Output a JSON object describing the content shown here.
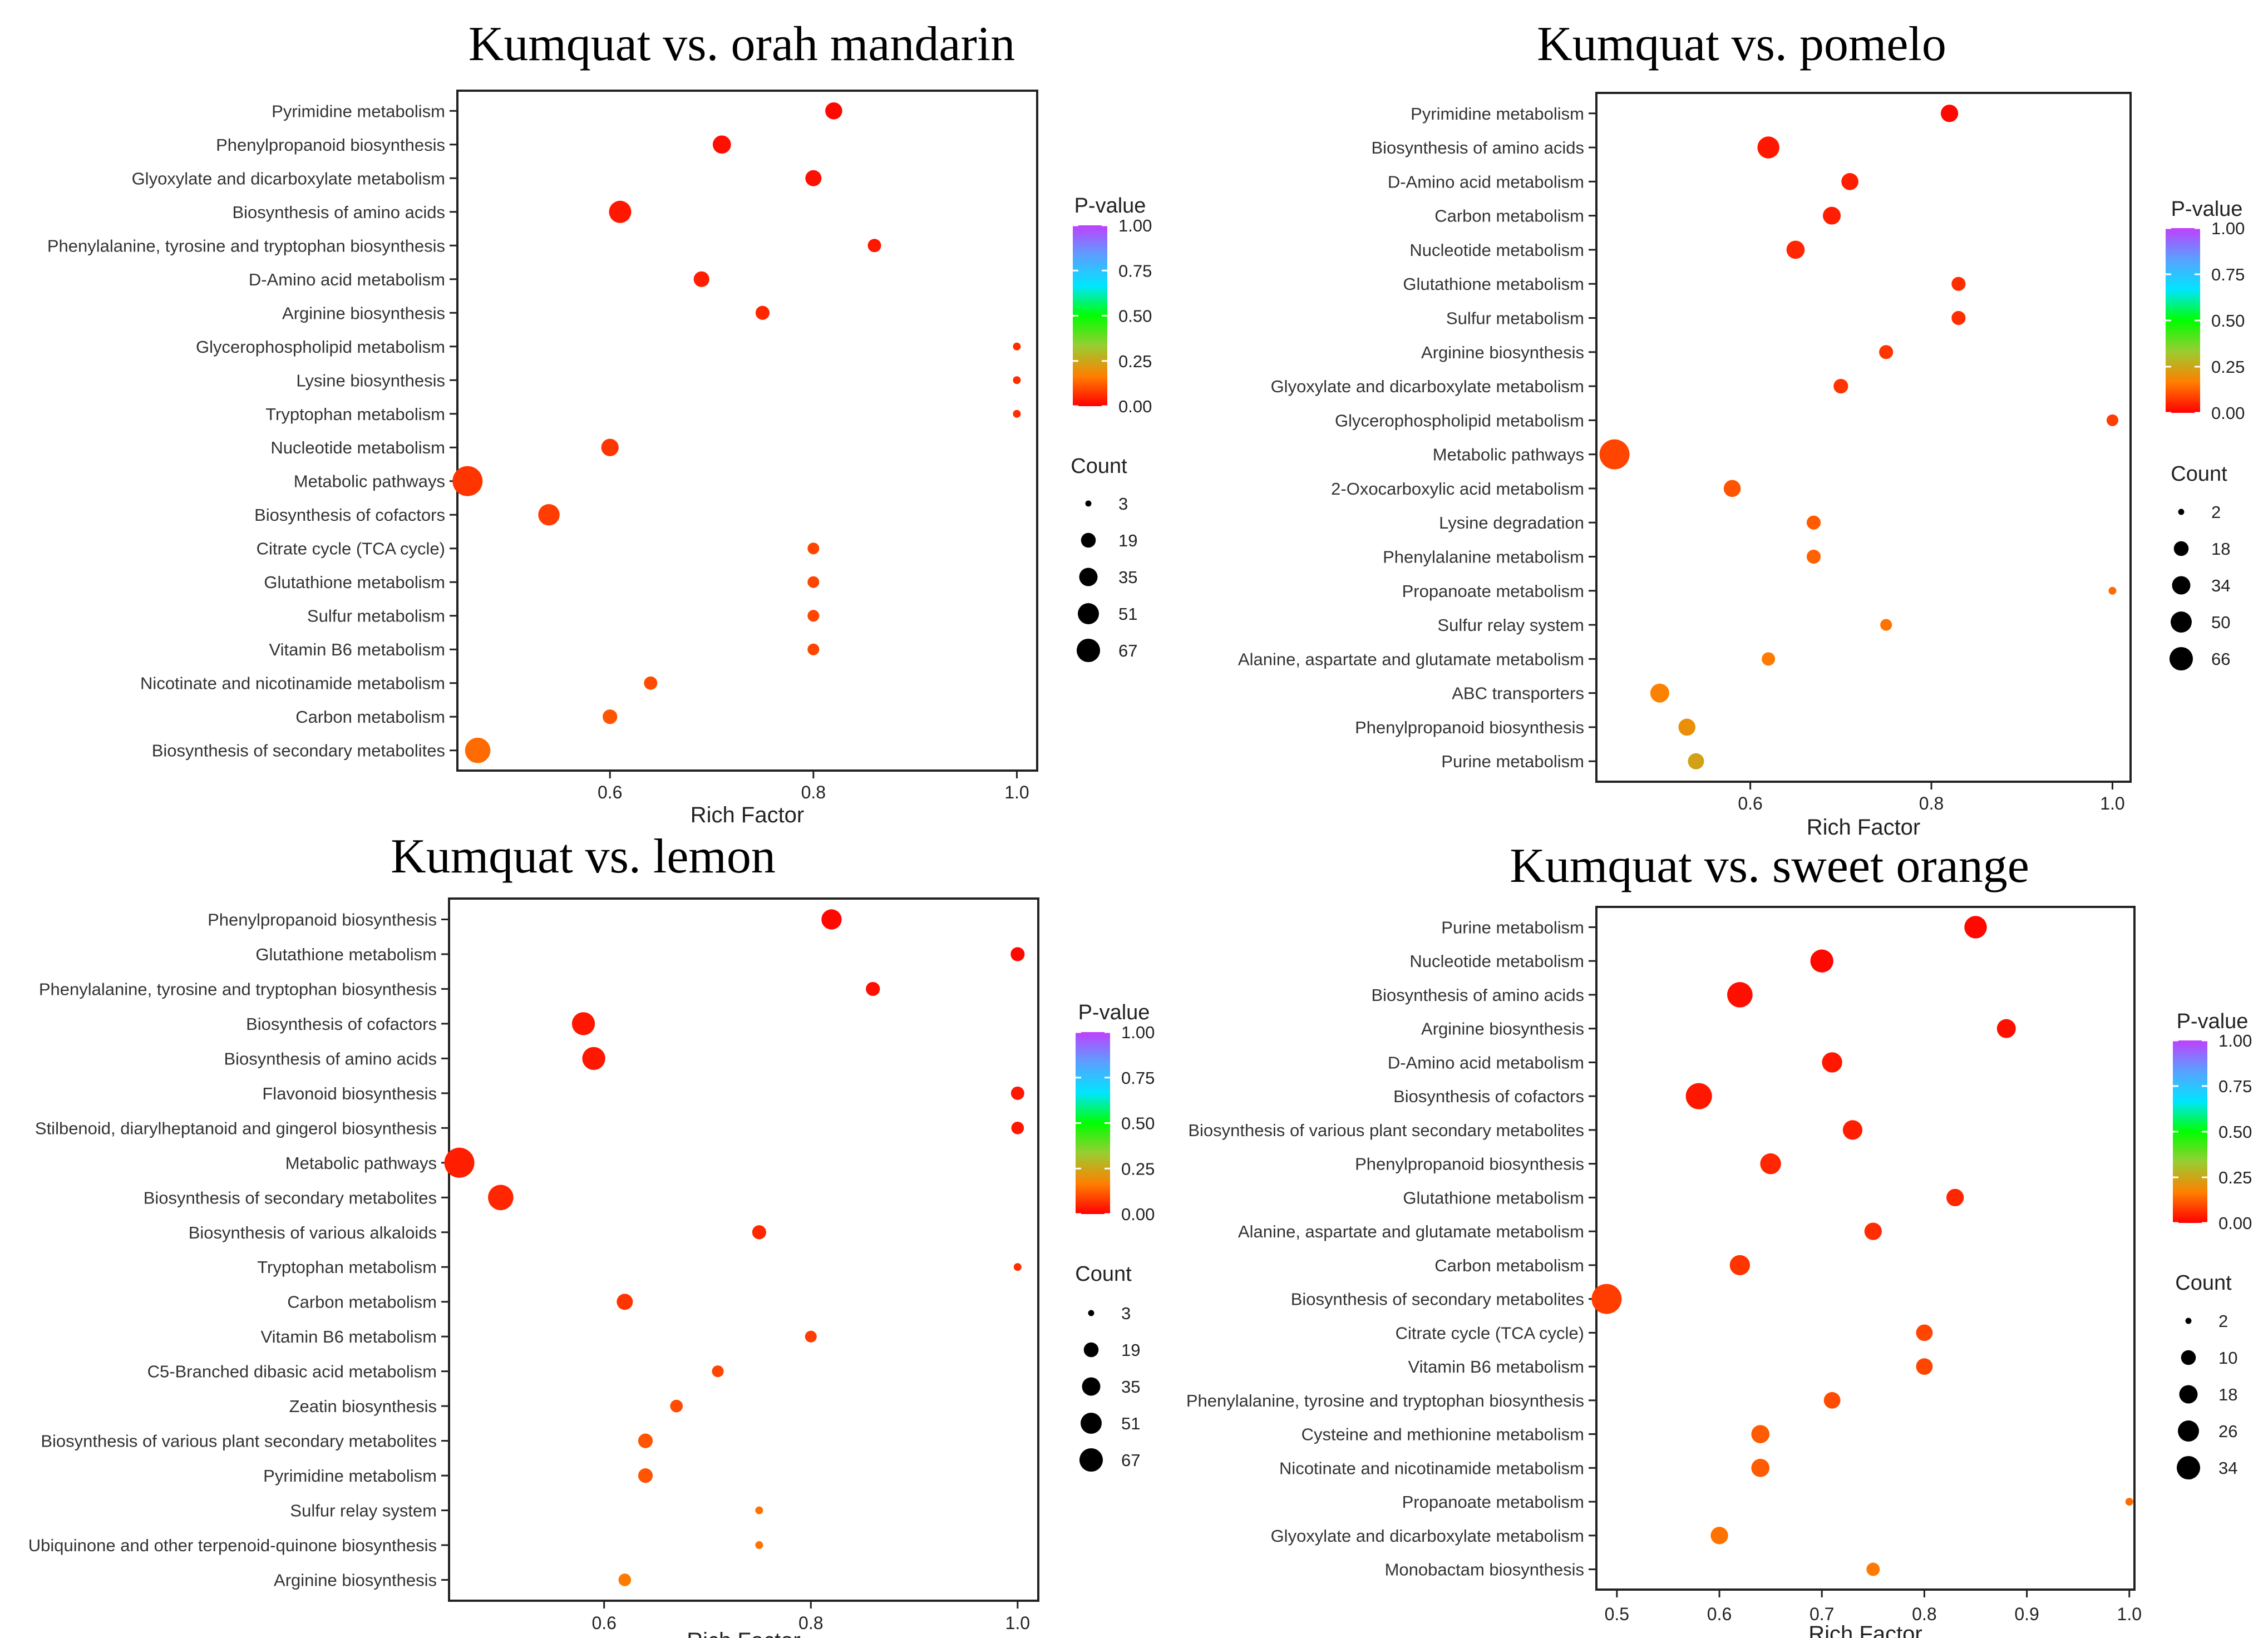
{
  "colors": {
    "scale": [
      "#ff0000",
      "#ff7f00",
      "#9acd32",
      "#00ff00",
      "#00e5ff",
      "#5aa0ff",
      "#bf40ff"
    ],
    "frame": "#222222",
    "size_legend_dot": "#000000"
  },
  "chart_data": [
    {
      "type": "scatter",
      "title": "Kumquat vs. orah mandarin",
      "xlabel": "Rich Factor",
      "ylabel": "",
      "xlim": [
        0.45,
        1.02
      ],
      "xticks": [
        "0.6",
        "0.8",
        "1.0"
      ],
      "xtick_values": [
        0.6,
        0.8,
        1.0
      ],
      "grid": false,
      "legend_color": {
        "title": "P-value",
        "ticks": [
          "1.00",
          "0.75",
          "0.50",
          "0.25",
          "0.00"
        ]
      },
      "legend_size": {
        "title": "Count",
        "values": [
          "3",
          "19",
          "35",
          "51",
          "67"
        ]
      },
      "count_range": [
        3,
        67
      ],
      "points": [
        {
          "term": "Pyrimidine metabolism",
          "x": 0.82,
          "count": 14,
          "p": 0.01
        },
        {
          "term": "Phenylpropanoid biosynthesis",
          "x": 0.71,
          "count": 17,
          "p": 0.02
        },
        {
          "term": "Glyoxylate and dicarboxylate metabolism",
          "x": 0.8,
          "count": 12,
          "p": 0.02
        },
        {
          "term": "Biosynthesis of amino acids",
          "x": 0.61,
          "count": 30,
          "p": 0.03
        },
        {
          "term": "Phenylalanine, tyrosine and tryptophan biosynthesis",
          "x": 0.86,
          "count": 7,
          "p": 0.03
        },
        {
          "term": "D-Amino acid metabolism",
          "x": 0.69,
          "count": 11,
          "p": 0.04
        },
        {
          "term": "Arginine biosynthesis",
          "x": 0.75,
          "count": 8,
          "p": 0.05
        },
        {
          "term": "Glycerophospholipid metabolism",
          "x": 1.0,
          "count": 3,
          "p": 0.06
        },
        {
          "term": "Lysine biosynthesis",
          "x": 1.0,
          "count": 3,
          "p": 0.06
        },
        {
          "term": "Tryptophan metabolism",
          "x": 1.0,
          "count": 3,
          "p": 0.06
        },
        {
          "term": "Nucleotide metabolism",
          "x": 0.6,
          "count": 15,
          "p": 0.07
        },
        {
          "term": "Metabolic pathways",
          "x": 0.46,
          "count": 67,
          "p": 0.07
        },
        {
          "term": "Biosynthesis of cofactors",
          "x": 0.54,
          "count": 27,
          "p": 0.08
        },
        {
          "term": "Citrate cycle (TCA cycle)",
          "x": 0.8,
          "count": 5,
          "p": 0.09
        },
        {
          "term": "Glutathione metabolism",
          "x": 0.8,
          "count": 5,
          "p": 0.09
        },
        {
          "term": "Sulfur metabolism",
          "x": 0.8,
          "count": 5,
          "p": 0.09
        },
        {
          "term": "Vitamin B6 metabolism",
          "x": 0.8,
          "count": 5,
          "p": 0.09
        },
        {
          "term": "Nicotinate and nicotinamide metabolism",
          "x": 0.64,
          "count": 7,
          "p": 0.1
        },
        {
          "term": "Carbon metabolism",
          "x": 0.6,
          "count": 9,
          "p": 0.11
        },
        {
          "term": "Biosynthesis of secondary metabolites",
          "x": 0.47,
          "count": 43,
          "p": 0.14
        }
      ]
    },
    {
      "type": "scatter",
      "title": "Kumquat vs. pomelo",
      "xlabel": "Rich Factor",
      "ylabel": "",
      "xlim": [
        0.43,
        1.02
      ],
      "xticks": [
        "0.6",
        "0.8",
        "1.0"
      ],
      "xtick_values": [
        0.6,
        0.8,
        1.0
      ],
      "grid": false,
      "legend_color": {
        "title": "P-value",
        "ticks": [
          "1.00",
          "0.75",
          "0.50",
          "0.25",
          "0.00"
        ]
      },
      "legend_size": {
        "title": "Count",
        "values": [
          "2",
          "18",
          "34",
          "50",
          "66"
        ]
      },
      "count_range": [
        2,
        66
      ],
      "points": [
        {
          "term": "Pyrimidine metabolism",
          "x": 0.82,
          "count": 14,
          "p": 0.01
        },
        {
          "term": "Biosynthesis of amino acids",
          "x": 0.62,
          "count": 28,
          "p": 0.03
        },
        {
          "term": "D-Amino acid metabolism",
          "x": 0.71,
          "count": 13,
          "p": 0.04
        },
        {
          "term": "Carbon metabolism",
          "x": 0.69,
          "count": 15,
          "p": 0.04
        },
        {
          "term": "Nucleotide metabolism",
          "x": 0.65,
          "count": 16,
          "p": 0.05
        },
        {
          "term": "Glutathione metabolism",
          "x": 0.83,
          "count": 7,
          "p": 0.06
        },
        {
          "term": "Sulfur metabolism",
          "x": 0.83,
          "count": 7,
          "p": 0.06
        },
        {
          "term": "Arginine biosynthesis",
          "x": 0.75,
          "count": 7,
          "p": 0.07
        },
        {
          "term": "Glyoxylate and dicarboxylate metabolism",
          "x": 0.7,
          "count": 8,
          "p": 0.07
        },
        {
          "term": "Glycerophospholipid metabolism",
          "x": 1.0,
          "count": 4,
          "p": 0.08
        },
        {
          "term": "Metabolic pathways",
          "x": 0.45,
          "count": 66,
          "p": 0.09
        },
        {
          "term": "2-Oxocarboxylic acid metabolism",
          "x": 0.58,
          "count": 13,
          "p": 0.11
        },
        {
          "term": "Lysine degradation",
          "x": 0.67,
          "count": 7,
          "p": 0.12
        },
        {
          "term": "Phenylalanine metabolism",
          "x": 0.67,
          "count": 7,
          "p": 0.13
        },
        {
          "term": "Propanoate metabolism",
          "x": 1.0,
          "count": 2,
          "p": 0.14
        },
        {
          "term": "Sulfur relay system",
          "x": 0.75,
          "count": 4,
          "p": 0.15
        },
        {
          "term": "Alanine, aspartate and glutamate metabolism",
          "x": 0.62,
          "count": 6,
          "p": 0.16
        },
        {
          "term": "ABC transporters",
          "x": 0.5,
          "count": 18,
          "p": 0.17
        },
        {
          "term": "Phenylpropanoid biosynthesis",
          "x": 0.53,
          "count": 13,
          "p": 0.2
        },
        {
          "term": "Purine metabolism",
          "x": 0.54,
          "count": 11,
          "p": 0.24
        }
      ]
    },
    {
      "type": "scatter",
      "title": "Kumquat vs. lemon",
      "xlabel": "Rich Factor",
      "ylabel": "",
      "xlim": [
        0.45,
        1.02
      ],
      "xticks": [
        "0.6",
        "0.8",
        "1.0"
      ],
      "xtick_values": [
        0.6,
        0.8,
        1.0
      ],
      "grid": false,
      "legend_color": {
        "title": "P-value",
        "ticks": [
          "1.00",
          "0.75",
          "0.50",
          "0.25",
          "0.00"
        ]
      },
      "legend_size": {
        "title": "Count",
        "values": [
          "3",
          "19",
          "35",
          "51",
          "67"
        ]
      },
      "count_range": [
        3,
        67
      ],
      "points": [
        {
          "term": "Phenylpropanoid biosynthesis",
          "x": 0.82,
          "count": 23,
          "p": 0.01
        },
        {
          "term": "Glutathione metabolism",
          "x": 1.0,
          "count": 8,
          "p": 0.01
        },
        {
          "term": "Phenylalanine, tyrosine and tryptophan biosynthesis",
          "x": 0.86,
          "count": 8,
          "p": 0.02
        },
        {
          "term": "Biosynthesis of cofactors",
          "x": 0.58,
          "count": 33,
          "p": 0.03
        },
        {
          "term": "Biosynthesis of amino acids",
          "x": 0.59,
          "count": 33,
          "p": 0.03
        },
        {
          "term": "Flavonoid biosynthesis",
          "x": 1.0,
          "count": 7,
          "p": 0.03
        },
        {
          "term": "Stilbenoid, diarylheptanoid and gingerol biosynthesis",
          "x": 1.0,
          "count": 6,
          "p": 0.03
        },
        {
          "term": "Metabolic pathways",
          "x": 0.46,
          "count": 67,
          "p": 0.04
        },
        {
          "term": "Biosynthesis of secondary metabolites",
          "x": 0.5,
          "count": 43,
          "p": 0.05
        },
        {
          "term": "Biosynthesis of various alkaloids",
          "x": 0.75,
          "count": 8,
          "p": 0.05
        },
        {
          "term": "Tryptophan metabolism",
          "x": 1.0,
          "count": 3,
          "p": 0.06
        },
        {
          "term": "Carbon metabolism",
          "x": 0.62,
          "count": 12,
          "p": 0.07
        },
        {
          "term": "Vitamin B6 metabolism",
          "x": 0.8,
          "count": 5,
          "p": 0.08
        },
        {
          "term": "C5-Branched dibasic acid metabolism",
          "x": 0.71,
          "count": 5,
          "p": 0.09
        },
        {
          "term": "Zeatin biosynthesis",
          "x": 0.67,
          "count": 6,
          "p": 0.1
        },
        {
          "term": "Biosynthesis of various plant secondary metabolites",
          "x": 0.64,
          "count": 9,
          "p": 0.11
        },
        {
          "term": "Pyrimidine metabolism",
          "x": 0.64,
          "count": 9,
          "p": 0.11
        },
        {
          "term": "Sulfur relay system",
          "x": 0.75,
          "count": 3,
          "p": 0.15
        },
        {
          "term": "Ubiquinone and other terpenoid-quinone biosynthesis",
          "x": 0.75,
          "count": 3,
          "p": 0.15
        },
        {
          "term": "Arginine biosynthesis",
          "x": 0.62,
          "count": 6,
          "p": 0.16
        }
      ]
    },
    {
      "type": "scatter",
      "title": "Kumquat vs. sweet orange",
      "xlabel": "Rich Factor",
      "ylabel": "",
      "xlim": [
        0.48,
        1.005
      ],
      "xticks": [
        "0.5",
        "0.6",
        "0.7",
        "0.8",
        "0.9",
        "1.0"
      ],
      "xtick_values": [
        0.5,
        0.6,
        0.7,
        0.8,
        0.9,
        1.0
      ],
      "grid": false,
      "legend_color": {
        "title": "P-value",
        "ticks": [
          "1.00",
          "0.75",
          "0.50",
          "0.25",
          "0.00"
        ]
      },
      "legend_size": {
        "title": "Count",
        "values": [
          "2",
          "10",
          "18",
          "26",
          "34"
        ]
      },
      "count_range": [
        2,
        34
      ],
      "points": [
        {
          "term": "Purine metabolism",
          "x": 0.85,
          "count": 16,
          "p": 0.01
        },
        {
          "term": "Nucleotide metabolism",
          "x": 0.7,
          "count": 17,
          "p": 0.01
        },
        {
          "term": "Biosynthesis of amino acids",
          "x": 0.62,
          "count": 22,
          "p": 0.02
        },
        {
          "term": "Arginine biosynthesis",
          "x": 0.88,
          "count": 10,
          "p": 0.02
        },
        {
          "term": "D-Amino acid metabolism",
          "x": 0.71,
          "count": 12,
          "p": 0.03
        },
        {
          "term": "Biosynthesis of cofactors",
          "x": 0.58,
          "count": 24,
          "p": 0.03
        },
        {
          "term": "Biosynthesis of various plant secondary metabolites",
          "x": 0.73,
          "count": 11,
          "p": 0.04
        },
        {
          "term": "Phenylpropanoid biosynthesis",
          "x": 0.65,
          "count": 13,
          "p": 0.05
        },
        {
          "term": "Glutathione metabolism",
          "x": 0.83,
          "count": 8,
          "p": 0.05
        },
        {
          "term": "Alanine, aspartate and glutamate metabolism",
          "x": 0.75,
          "count": 8,
          "p": 0.06
        },
        {
          "term": "Carbon metabolism",
          "x": 0.62,
          "count": 12,
          "p": 0.07
        },
        {
          "term": "Biosynthesis of secondary metabolites",
          "x": 0.49,
          "count": 34,
          "p": 0.08
        },
        {
          "term": "Citrate cycle (TCA cycle)",
          "x": 0.8,
          "count": 7,
          "p": 0.09
        },
        {
          "term": "Vitamin B6 metabolism",
          "x": 0.8,
          "count": 7,
          "p": 0.09
        },
        {
          "term": "Phenylalanine, tyrosine and tryptophan biosynthesis",
          "x": 0.71,
          "count": 7,
          "p": 0.1
        },
        {
          "term": "Cysteine and methionine metabolism",
          "x": 0.64,
          "count": 9,
          "p": 0.12
        },
        {
          "term": "Nicotinate and nicotinamide metabolism",
          "x": 0.64,
          "count": 9,
          "p": 0.12
        },
        {
          "term": "Propanoate metabolism",
          "x": 1.0,
          "count": 2,
          "p": 0.14
        },
        {
          "term": "Glyoxylate and dicarboxylate metabolism",
          "x": 0.6,
          "count": 8,
          "p": 0.15
        },
        {
          "term": "Monobactam biosynthesis",
          "x": 0.75,
          "count": 4,
          "p": 0.16
        }
      ]
    }
  ]
}
